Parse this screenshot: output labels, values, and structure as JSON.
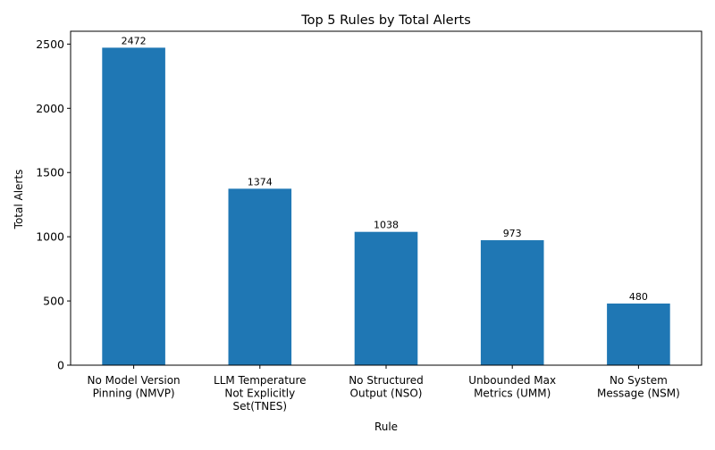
{
  "chart_data": {
    "type": "bar",
    "title": "Top 5 Rules by Total Alerts",
    "xlabel": "Rule",
    "ylabel": "Total Alerts",
    "ylim": [
      0,
      2600
    ],
    "yticks": [
      0,
      500,
      1000,
      1500,
      2000,
      2500
    ],
    "grid": false,
    "legend": "none",
    "bar_color": "#1f77b4",
    "categories": [
      [
        "No Model Version",
        "Pinning (NMVP)"
      ],
      [
        "LLM Temperature",
        "Not Explicitly",
        "Set(TNES)"
      ],
      [
        "No Structured",
        "Output (NSO)"
      ],
      [
        "Unbounded Max",
        "Metrics (UMM)"
      ],
      [
        "No System",
        "Message (NSM)"
      ]
    ],
    "values": [
      2472,
      1374,
      1038,
      973,
      480
    ],
    "data_labels": [
      "2472",
      "1374",
      "1038",
      "973",
      "480"
    ]
  }
}
